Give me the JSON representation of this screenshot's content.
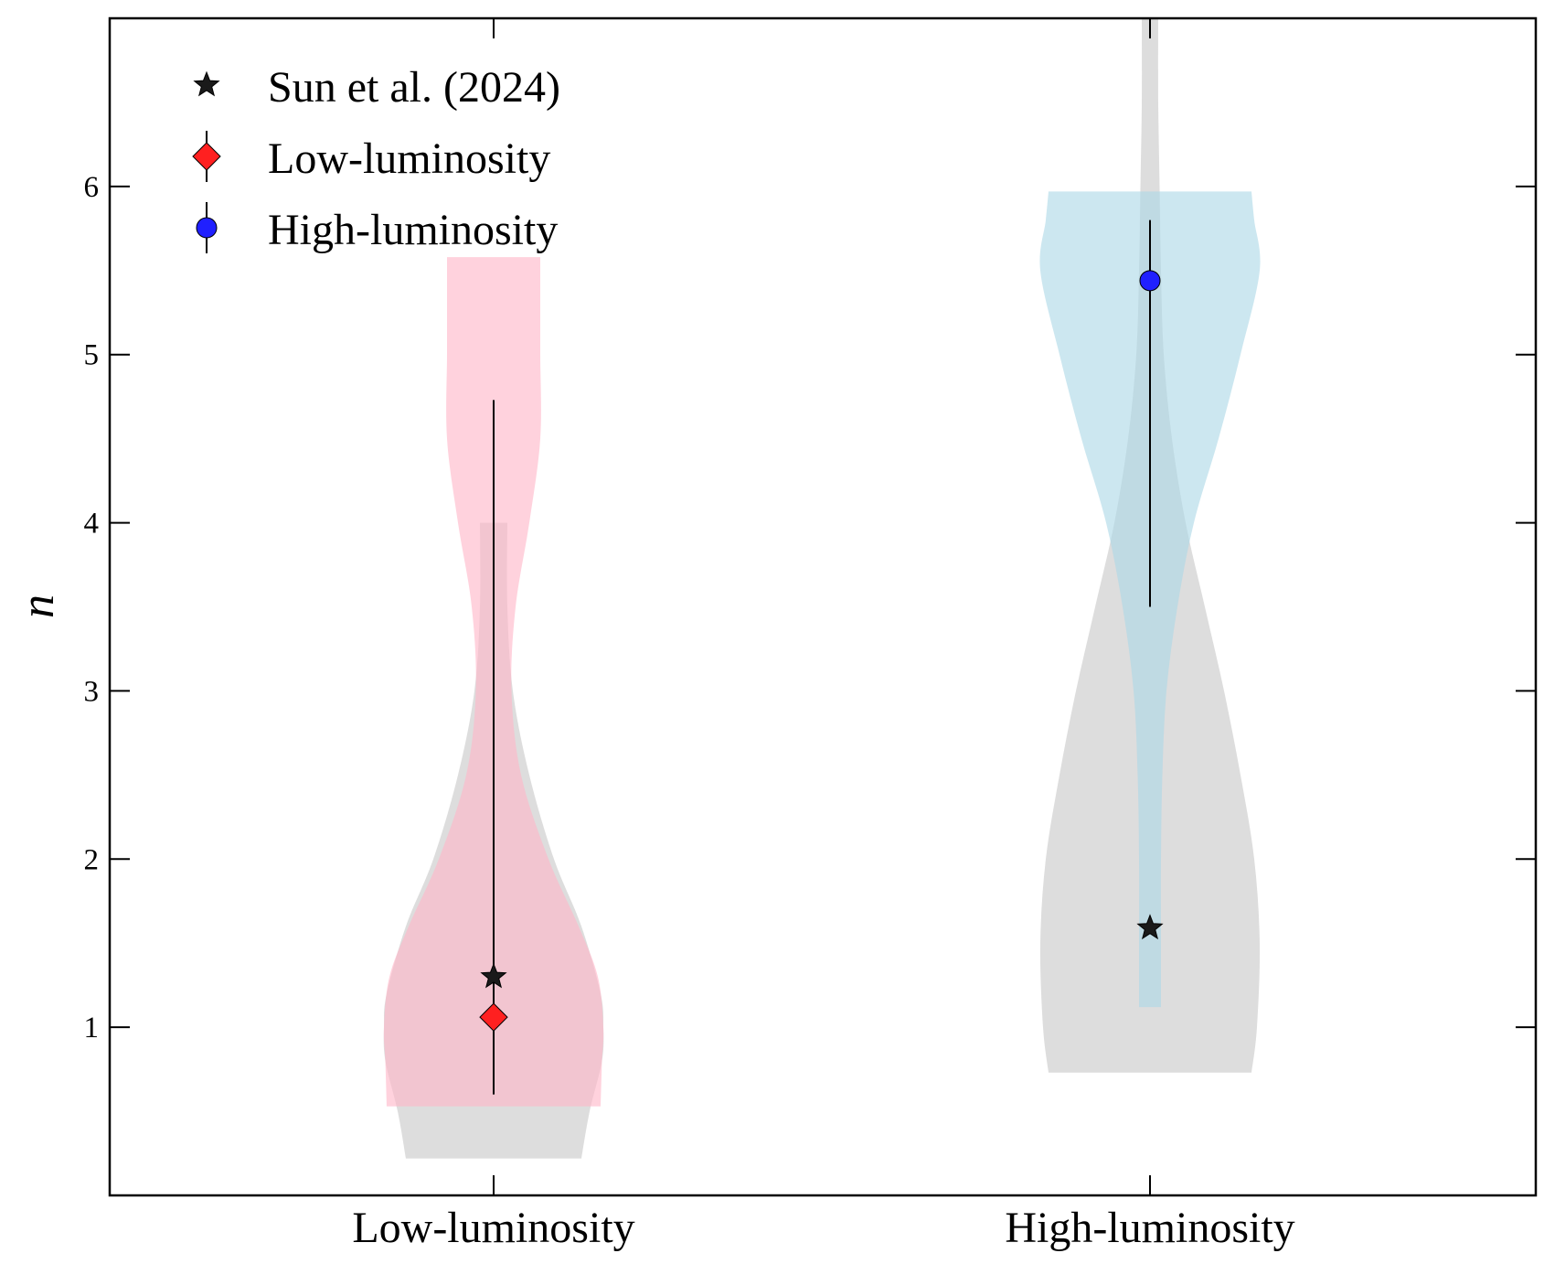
{
  "chart_data": {
    "type": "violin",
    "title": "",
    "xlabel": "",
    "ylabel": "n",
    "categories": [
      "Low-luminosity",
      "High-luminosity"
    ],
    "ylim": [
      0.0,
      7.0
    ],
    "yticks": [
      1,
      2,
      3,
      4,
      5,
      6
    ],
    "grid": false,
    "legend": {
      "placement": "top-left",
      "entries": [
        {
          "label": "Sun et al. (2024)",
          "marker": "star",
          "color": "#1a1a1a"
        },
        {
          "label": "Low-luminosity",
          "marker": "diamond",
          "color": "#ff2020"
        },
        {
          "label": "High-luminosity",
          "marker": "circle",
          "color": "#2020ff"
        }
      ]
    },
    "colors": {
      "low_violin": "#ffb6c8",
      "high_violin": "#add8e6",
      "comparison_violin": "#c8c8c8"
    },
    "violins": [
      {
        "series": "Sun et al. (2024)",
        "category": "Low-luminosity",
        "color": "#c8c8c8",
        "range": [
          0.22,
          4.0
        ],
        "profile": [
          [
            0.22,
            0.32
          ],
          [
            0.5,
            0.35
          ],
          [
            0.8,
            0.395
          ],
          [
            1.0,
            0.4
          ],
          [
            1.2,
            0.39
          ],
          [
            1.6,
            0.32
          ],
          [
            2.0,
            0.22
          ],
          [
            2.5,
            0.13
          ],
          [
            3.0,
            0.07
          ],
          [
            3.5,
            0.05
          ],
          [
            4.0,
            0.05
          ]
        ]
      },
      {
        "series": "Low-luminosity",
        "category": "Low-luminosity",
        "color": "#ffb6c8",
        "range": [
          0.53,
          5.58
        ],
        "profile": [
          [
            0.53,
            0.39
          ],
          [
            0.8,
            0.395
          ],
          [
            1.0,
            0.4
          ],
          [
            1.3,
            0.38
          ],
          [
            1.6,
            0.31
          ],
          [
            2.0,
            0.2
          ],
          [
            2.5,
            0.1
          ],
          [
            3.0,
            0.065
          ],
          [
            3.5,
            0.08
          ],
          [
            4.0,
            0.13
          ],
          [
            4.5,
            0.17
          ],
          [
            5.0,
            0.17
          ],
          [
            5.3,
            0.17
          ],
          [
            5.58,
            0.17
          ]
        ]
      },
      {
        "series": "Sun et al. (2024)",
        "category": "High-luminosity",
        "color": "#c8c8c8",
        "range": [
          0.73,
          7.0
        ],
        "profile": [
          [
            0.73,
            0.37
          ],
          [
            1.0,
            0.39
          ],
          [
            1.5,
            0.4
          ],
          [
            2.0,
            0.38
          ],
          [
            2.5,
            0.33
          ],
          [
            3.0,
            0.27
          ],
          [
            3.5,
            0.2
          ],
          [
            4.0,
            0.13
          ],
          [
            4.5,
            0.08
          ],
          [
            5.0,
            0.05
          ],
          [
            5.5,
            0.04
          ],
          [
            6.0,
            0.035
          ],
          [
            6.5,
            0.03
          ],
          [
            7.0,
            0.03
          ]
        ]
      },
      {
        "series": "High-luminosity",
        "category": "High-luminosity",
        "color": "#add8e6",
        "range": [
          1.12,
          5.97
        ],
        "profile": [
          [
            1.12,
            0.04
          ],
          [
            1.5,
            0.04
          ],
          [
            2.0,
            0.04
          ],
          [
            2.5,
            0.045
          ],
          [
            3.0,
            0.06
          ],
          [
            3.5,
            0.1
          ],
          [
            4.0,
            0.16
          ],
          [
            4.5,
            0.25
          ],
          [
            5.0,
            0.33
          ],
          [
            5.5,
            0.4
          ],
          [
            5.8,
            0.38
          ],
          [
            5.97,
            0.37
          ]
        ]
      }
    ],
    "points": [
      {
        "series": "Sun et al. (2024)",
        "category": "Low-luminosity",
        "y": 1.3,
        "marker": "star"
      },
      {
        "series": "Low-luminosity",
        "category": "Low-luminosity",
        "y": 1.06,
        "yerr_low": 0.6,
        "yerr_high": 4.73,
        "marker": "diamond"
      },
      {
        "series": "Sun et al. (2024)",
        "category": "High-luminosity",
        "y": 1.59,
        "marker": "star"
      },
      {
        "series": "High-luminosity",
        "category": "High-luminosity",
        "y": 5.44,
        "yerr_low": 3.5,
        "yerr_high": 5.8,
        "marker": "circle"
      }
    ]
  }
}
